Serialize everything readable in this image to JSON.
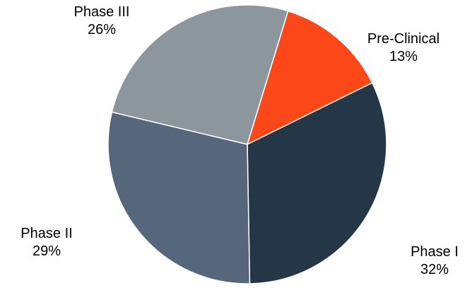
{
  "chart_data": {
    "type": "pie",
    "title": "",
    "slices": [
      {
        "name": "Pre-Clinical",
        "value": 13,
        "percent_label": "13%",
        "color": "#fc4718"
      },
      {
        "name": "Phase I",
        "value": 32,
        "percent_label": "32%",
        "color": "#253746"
      },
      {
        "name": "Phase II",
        "value": 29,
        "percent_label": "29%",
        "color": "#56677b"
      },
      {
        "name": "Phase III",
        "value": 26,
        "percent_label": "26%",
        "color": "#8d969d"
      }
    ],
    "start_angle_deg": 17,
    "direction": "clockwise",
    "legend": "none"
  }
}
